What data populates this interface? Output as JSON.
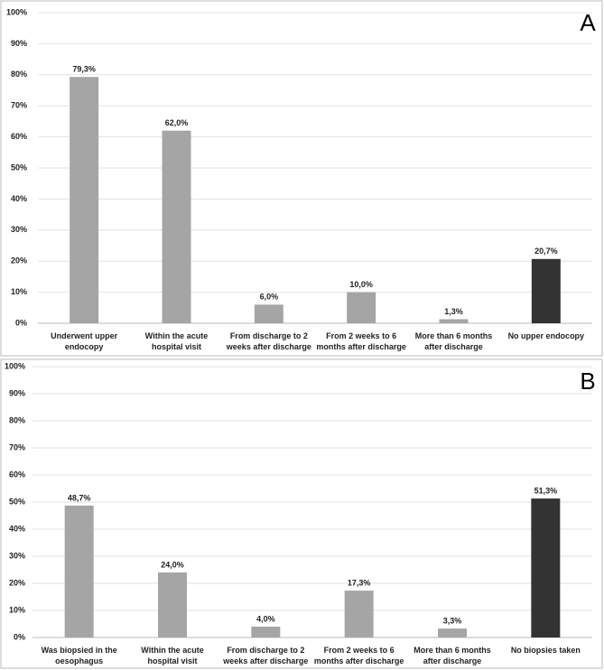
{
  "chart_data": [
    {
      "type": "bar",
      "panel_label": "A",
      "categories": [
        "Underwent upper endocopy",
        "Within the acute hospital visit",
        "From discharge to 2 weeks after discharge",
        "From 2 weeks to 6 months after discharge",
        "More than 6 months after discharge",
        "No upper endocopy"
      ],
      "values": [
        79.3,
        62.0,
        6.0,
        10.0,
        1.3,
        20.7
      ],
      "value_labels": [
        "79,3%",
        "62,0%",
        "6,0%",
        "10,0%",
        "1,3%",
        "20,7%"
      ],
      "colors": [
        "#a5a5a5",
        "#a5a5a5",
        "#a5a5a5",
        "#a5a5a5",
        "#a5a5a5",
        "#333333"
      ],
      "ylim": [
        0,
        100
      ],
      "yticks": [
        {
          "value": 0,
          "label": "0%"
        },
        {
          "value": 10,
          "label": "10%"
        },
        {
          "value": 20,
          "label": "20%"
        },
        {
          "value": 30,
          "label": "30%"
        },
        {
          "value": 40,
          "label": "40%"
        },
        {
          "value": 50,
          "label": "50%"
        },
        {
          "value": 60,
          "label": "60%"
        },
        {
          "value": 70,
          "label": "70%"
        },
        {
          "value": 80,
          "label": "80%"
        },
        {
          "value": 90,
          "label": "90%"
        },
        {
          "value": 100,
          "label": "100%"
        }
      ],
      "grid": true
    },
    {
      "type": "bar",
      "panel_label": "B",
      "categories": [
        "Was biopsied in the oesophagus",
        "Within the acute hospital visit",
        "From discharge to 2 weeks after discharge",
        "From 2 weeks to 6 months after discharge",
        "More than 6 months after discharge",
        "No biopsies taken"
      ],
      "values": [
        48.7,
        24.0,
        4.0,
        17.3,
        3.3,
        51.3
      ],
      "value_labels": [
        "48,7%",
        "24,0%",
        "4,0%",
        "17,3%",
        "3,3%",
        "51,3%"
      ],
      "colors": [
        "#a5a5a5",
        "#a5a5a5",
        "#a5a5a5",
        "#a5a5a5",
        "#a5a5a5",
        "#333333"
      ],
      "ylim": [
        0,
        100
      ],
      "yticks": [
        {
          "value": 0,
          "label": "0%"
        },
        {
          "value": 10,
          "label": "10%"
        },
        {
          "value": 20,
          "label": "20%"
        },
        {
          "value": 30,
          "label": "30%"
        },
        {
          "value": 40,
          "label": "40%"
        },
        {
          "value": 50,
          "label": "50%"
        },
        {
          "value": 60,
          "label": "60%"
        },
        {
          "value": 70,
          "label": "70%"
        },
        {
          "value": 80,
          "label": "80%"
        },
        {
          "value": 90,
          "label": "90%"
        },
        {
          "value": 100,
          "label": "100%"
        }
      ],
      "grid": true
    }
  ]
}
